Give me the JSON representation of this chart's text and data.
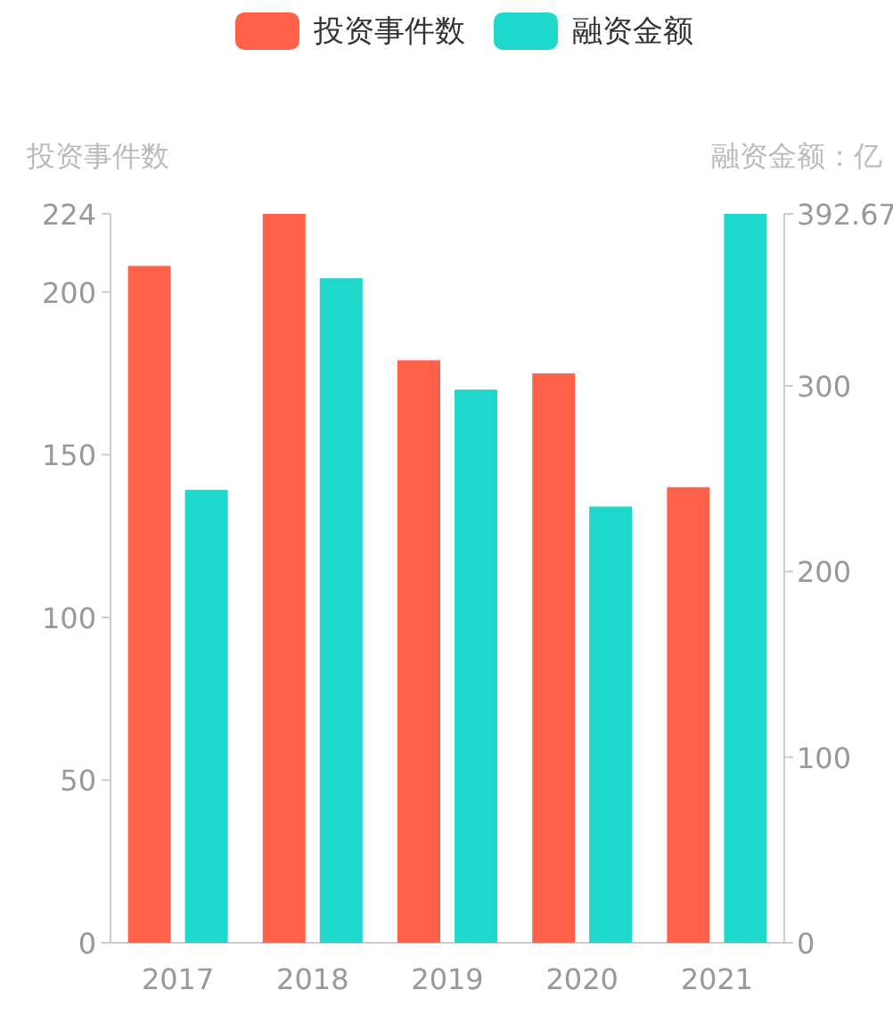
{
  "chart_data": {
    "type": "bar",
    "categories": [
      "2017",
      "2018",
      "2019",
      "2020",
      "2021"
    ],
    "series": [
      {
        "name": "投资事件数",
        "color": "#ff6248",
        "values": [
          208,
          224,
          179,
          175,
          140
        ]
      },
      {
        "name": "融资金额",
        "color": "#1fd8cc",
        "values": [
          244,
          358,
          298,
          235,
          392.67
        ],
        "axis": "y2"
      }
    ],
    "ylabel": "投资事件数",
    "y2label": "融资金额：亿",
    "ylim": [
      0,
      224
    ],
    "yticks": [
      0,
      50,
      100,
      150,
      200,
      224
    ],
    "y2lim": [
      0,
      392.67
    ],
    "y2ticks": [
      0,
      100,
      200,
      300,
      392.67
    ],
    "legend": "top"
  }
}
